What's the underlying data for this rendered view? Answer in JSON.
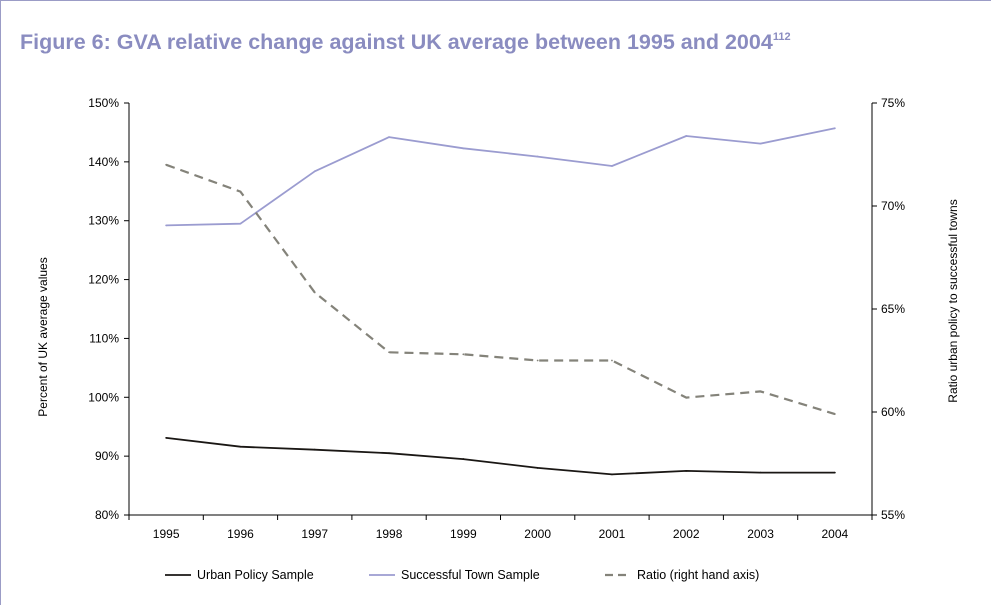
{
  "figure": {
    "title": "Figure 6: GVA relative change against UK average between 1995 and 2004",
    "footnote": "112"
  },
  "chart_data": {
    "type": "line",
    "x": [
      "1995",
      "1996",
      "1997",
      "1998",
      "1999",
      "2000",
      "2001",
      "2002",
      "2003",
      "2004"
    ],
    "ylabel": "Percent of UK average values",
    "ylabel_right": "Ratio urban policy to successful towns",
    "ylim": [
      80,
      150
    ],
    "ylim_right": [
      55,
      75
    ],
    "yticks": [
      "80%",
      "90%",
      "100%",
      "110%",
      "120%",
      "130%",
      "140%",
      "150%"
    ],
    "yticks_right": [
      "55%",
      "60%",
      "65%",
      "70%",
      "75%"
    ],
    "grid": false,
    "legend_position": "bottom",
    "series": [
      {
        "name": "Urban Policy Sample",
        "axis": "left",
        "color": "#1a1714",
        "style": "solid",
        "values": [
          93.1,
          91.6,
          91.1,
          90.5,
          89.5,
          88.0,
          86.9,
          87.5,
          87.2,
          87.2
        ]
      },
      {
        "name": "Successful Town Sample",
        "axis": "left",
        "color": "#9b9cd0",
        "style": "solid",
        "values": [
          129.2,
          129.5,
          138.4,
          144.2,
          142.3,
          140.9,
          139.3,
          144.4,
          143.1,
          145.7
        ]
      },
      {
        "name": "Ratio (right hand axis)",
        "axis": "right",
        "color": "#84837a",
        "style": "dashed",
        "values": [
          72.0,
          70.7,
          65.8,
          62.9,
          62.8,
          62.5,
          62.5,
          60.7,
          61.0,
          59.9
        ]
      }
    ]
  }
}
